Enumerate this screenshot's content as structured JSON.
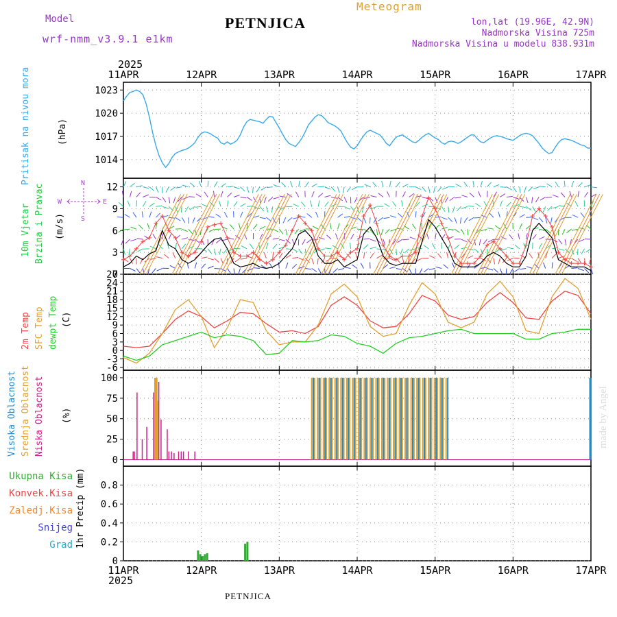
{
  "header": {
    "model_label": "Model",
    "model_value": "wrf-nmm_v3.9.1  e1km",
    "station": "PETNJICA",
    "meteogram": "Meteogram",
    "lonlat": "lon,lat (19.96E, 42.9N)",
    "elevation": "Nadmorska Visina 725m",
    "model_elevation": "Nadmorska Visina u modelu 838.931m"
  },
  "footer": {
    "station": "PETNJICA"
  },
  "watermark": "made by Angel",
  "colors": {
    "pressure": "#38a8e8",
    "wind": "#22cc44",
    "temp2m": "#ee4444",
    "sfc": "#e0a030",
    "dew": "#22cc22",
    "high_cloud": "#2288cc",
    "mid_cloud": "#e0a030",
    "low_cloud": "#cc2288",
    "total_precip": "#33aa33",
    "conv_precip": "#ee4444",
    "frz_precip": "#ee8833",
    "snow": "#4444dd",
    "hail": "#22aacc",
    "compass": "#aa44cc",
    "title_purple": "#9933cc",
    "title_orange": "#e0a030"
  },
  "chart_data": [
    {
      "type": "line",
      "panel": "pressure",
      "ylabel": [
        "Pritisak na nivou mora",
        "(hPa)"
      ],
      "ylim": [
        1011,
        1024
      ],
      "yticks": [
        1014,
        1017,
        1020,
        1023
      ],
      "xlim": [
        0,
        144
      ],
      "xtick_labels": [
        "11APR",
        "12APR",
        "13APR",
        "14APR",
        "15APR",
        "16APR",
        "17APR"
      ],
      "year_label": "2025",
      "series": [
        {
          "color": "pressure",
          "x": [
            0,
            1,
            2,
            3,
            4,
            5,
            6,
            7,
            8,
            9,
            10,
            11,
            12,
            13,
            14,
            15,
            16,
            17,
            18,
            19,
            20,
            21,
            22,
            23,
            24,
            25,
            26,
            27,
            28,
            29,
            30,
            31,
            32,
            33,
            34,
            35,
            36,
            37,
            38,
            39,
            40,
            41,
            42,
            43,
            44,
            45,
            46,
            47,
            48,
            49,
            50,
            51,
            52,
            53,
            54,
            55,
            56,
            57,
            58,
            59,
            60,
            61,
            62,
            63,
            64,
            65,
            66,
            67,
            68,
            69,
            70,
            71,
            72,
            73,
            74,
            75,
            76,
            77,
            78,
            79,
            80,
            81,
            82,
            83,
            84,
            85,
            86,
            87,
            88,
            89,
            90,
            91,
            92,
            93,
            94,
            95,
            96,
            97,
            98,
            99,
            100,
            101,
            102,
            103,
            104,
            105,
            106,
            107,
            108,
            109,
            110,
            111,
            112,
            113,
            114,
            115,
            116,
            117,
            118,
            119,
            120,
            121,
            122,
            123,
            124,
            125,
            126,
            127,
            128,
            129,
            130,
            131,
            132,
            133,
            134,
            135,
            136,
            137,
            138,
            139,
            140,
            141,
            142,
            143,
            144
          ],
          "values": [
            1021.6,
            1022.2,
            1022.7,
            1022.8,
            1023.0,
            1022.8,
            1022.4,
            1021.2,
            1019.5,
            1017.5,
            1015.8,
            1014.5,
            1013.6,
            1013.0,
            1013.5,
            1014.3,
            1014.8,
            1015.0,
            1015.2,
            1015.3,
            1015.5,
            1015.8,
            1016.2,
            1016.9,
            1017.4,
            1017.6,
            1017.5,
            1017.3,
            1017.0,
            1016.8,
            1016.2,
            1016.0,
            1016.3,
            1016.0,
            1016.2,
            1016.5,
            1017.2,
            1018.2,
            1018.9,
            1019.2,
            1019.1,
            1019.0,
            1018.9,
            1018.7,
            1019.2,
            1019.6,
            1019.5,
            1018.8,
            1018.1,
            1017.3,
            1016.6,
            1016.1,
            1015.9,
            1015.7,
            1016.2,
            1016.8,
            1017.6,
            1018.5,
            1019.0,
            1019.5,
            1019.8,
            1019.7,
            1019.3,
            1018.8,
            1018.6,
            1018.4,
            1018.1,
            1017.7,
            1016.9,
            1016.2,
            1015.6,
            1015.4,
            1015.8,
            1016.5,
            1017.1,
            1017.6,
            1017.8,
            1017.6,
            1017.4,
            1017.2,
            1016.7,
            1016.1,
            1015.8,
            1016.4,
            1016.9,
            1017.1,
            1017.2,
            1016.9,
            1016.6,
            1016.3,
            1016.2,
            1016.5,
            1016.9,
            1017.2,
            1017.4,
            1017.1,
            1016.8,
            1016.6,
            1016.2,
            1016.0,
            1016.3,
            1016.4,
            1016.3,
            1016.1,
            1016.3,
            1016.6,
            1016.9,
            1017.2,
            1017.2,
            1016.7,
            1016.3,
            1016.2,
            1016.5,
            1016.8,
            1017.0,
            1017.1,
            1017.0,
            1016.9,
            1016.7,
            1016.6,
            1016.5,
            1016.8,
            1017.1,
            1017.3,
            1017.4,
            1017.3,
            1017.1,
            1016.6,
            1016.1,
            1015.5,
            1015.1,
            1014.8,
            1014.9,
            1015.6,
            1016.2,
            1016.6,
            1016.7,
            1016.6,
            1016.5,
            1016.3,
            1016.1,
            1015.9,
            1015.8,
            1015.5,
            1015.5
          ]
        }
      ]
    },
    {
      "type": "line",
      "panel": "wind",
      "ylabel": [
        "10m Vjetar",
        "Brzina i Pravac",
        "(m/s)"
      ],
      "compass": {
        "n": "N",
        "s": "S",
        "w": "W",
        "e": "E"
      },
      "ylim": [
        0,
        13
      ],
      "yticks": [
        0,
        3,
        6,
        9,
        12
      ],
      "xlim": [
        0,
        144
      ],
      "series": [
        {
          "name": "speed",
          "color": "#000000",
          "x": [
            0,
            2,
            4,
            6,
            8,
            10,
            12,
            14,
            16,
            18,
            20,
            22,
            24,
            26,
            28,
            30,
            32,
            34,
            36,
            38,
            40,
            42,
            44,
            46,
            48,
            50,
            52,
            54,
            56,
            58,
            60,
            62,
            64,
            66,
            68,
            70,
            72,
            74,
            76,
            78,
            80,
            82,
            84,
            86,
            88,
            90,
            92,
            94,
            96,
            98,
            100,
            102,
            104,
            106,
            108,
            110,
            112,
            114,
            116,
            118,
            120,
            122,
            124,
            126,
            128,
            130,
            132,
            134,
            136,
            138,
            140,
            142,
            144
          ],
          "values": [
            1.0,
            1.5,
            2.5,
            2.0,
            2.8,
            3.2,
            6.0,
            4.0,
            3.5,
            2.0,
            1.5,
            2.0,
            3.0,
            4.0,
            4.8,
            5.0,
            3.5,
            1.5,
            1.0,
            1.2,
            1.5,
            1.0,
            0.8,
            1.0,
            1.5,
            2.5,
            3.5,
            5.5,
            6.0,
            5.0,
            2.5,
            1.5,
            1.5,
            2.0,
            1.0,
            1.5,
            2.0,
            5.5,
            6.5,
            5.0,
            2.5,
            1.5,
            1.2,
            1.5,
            1.5,
            1.5,
            4.5,
            7.5,
            6.5,
            5.0,
            3.5,
            1.5,
            1.0,
            1.0,
            1.0,
            1.5,
            2.5,
            3.0,
            2.5,
            1.5,
            1.0,
            1.0,
            2.5,
            6.0,
            7.0,
            6.0,
            5.0,
            2.0,
            1.5,
            1.0,
            1.0,
            1.0,
            0.5
          ]
        },
        {
          "name": "gust",
          "color": "temp2m",
          "x": [
            0,
            2,
            4,
            6,
            8,
            10,
            12,
            14,
            16,
            18,
            20,
            22,
            24,
            26,
            28,
            30,
            32,
            34,
            36,
            38,
            40,
            42,
            44,
            46,
            48,
            50,
            52,
            54,
            56,
            58,
            60,
            62,
            64,
            66,
            68,
            70,
            72,
            74,
            76,
            78,
            80,
            82,
            84,
            86,
            88,
            90,
            92,
            94,
            96,
            98,
            100,
            102,
            104,
            106,
            108,
            110,
            112,
            114,
            116,
            118,
            120,
            122,
            124,
            126,
            128,
            130,
            132,
            134,
            136,
            138,
            140,
            142,
            144
          ],
          "values": [
            2.0,
            2.5,
            3.5,
            4.5,
            5.0,
            7.0,
            8.0,
            6.0,
            5.0,
            3.0,
            2.5,
            3.0,
            4.5,
            6.5,
            6.8,
            7.0,
            5.0,
            3.0,
            2.5,
            2.5,
            3.0,
            2.0,
            1.5,
            2.0,
            3.0,
            4.0,
            6.0,
            8.0,
            7.0,
            6.0,
            3.5,
            2.5,
            2.5,
            3.0,
            2.0,
            3.0,
            3.5,
            8.0,
            9.5,
            7.0,
            4.0,
            2.5,
            2.0,
            2.5,
            2.5,
            3.0,
            8.0,
            10.5,
            9.0,
            7.0,
            5.0,
            2.5,
            1.5,
            1.5,
            1.5,
            2.5,
            4.0,
            4.5,
            3.5,
            2.5,
            1.5,
            1.5,
            4.0,
            8.0,
            9.0,
            8.0,
            6.5,
            3.0,
            2.0,
            1.5,
            1.5,
            1.5,
            1.0
          ]
        }
      ]
    },
    {
      "type": "line",
      "panel": "temperature",
      "ylabel": [
        "2m Temp",
        "SFC Temp",
        "dewpt Temp",
        "(C)"
      ],
      "ylim": [
        -7,
        27
      ],
      "yticks": [
        -6,
        -3,
        0,
        3,
        6,
        9,
        12,
        15,
        18,
        21,
        24,
        27
      ],
      "xlim": [
        0,
        144
      ],
      "series": [
        {
          "name": "2m Temp",
          "color": "temp2m",
          "x": [
            0,
            4,
            8,
            12,
            16,
            20,
            24,
            28,
            32,
            36,
            40,
            44,
            48,
            52,
            56,
            60,
            64,
            68,
            72,
            76,
            80,
            84,
            88,
            92,
            96,
            100,
            104,
            108,
            112,
            116,
            120,
            124,
            128,
            132,
            136,
            140,
            144
          ],
          "values": [
            1.5,
            1.0,
            1.5,
            6.0,
            11.0,
            14.0,
            12.0,
            8.0,
            10.5,
            13.5,
            13.0,
            9.5,
            6.5,
            7.0,
            6.0,
            8.5,
            16.0,
            19.0,
            16.0,
            10.5,
            8.0,
            8.5,
            13.0,
            19.5,
            17.5,
            12.5,
            11.0,
            12.0,
            17.0,
            20.5,
            17.0,
            11.5,
            11.0,
            17.5,
            21.0,
            19.5,
            13.0
          ]
        },
        {
          "name": "SFC Temp",
          "color": "sfc",
          "x": [
            0,
            4,
            8,
            12,
            16,
            20,
            24,
            28,
            32,
            36,
            40,
            44,
            48,
            52,
            56,
            60,
            64,
            68,
            72,
            76,
            80,
            84,
            88,
            92,
            96,
            100,
            104,
            108,
            112,
            116,
            120,
            124,
            128,
            132,
            136,
            140,
            144
          ],
          "values": [
            -2.5,
            -4.5,
            -1.0,
            6.0,
            14.5,
            18.0,
            12.0,
            1.0,
            8.0,
            18.0,
            17.0,
            7.0,
            2.0,
            3.0,
            3.0,
            9.0,
            20.0,
            23.5,
            19.0,
            8.5,
            5.0,
            6.0,
            16.0,
            24.0,
            20.0,
            10.0,
            8.0,
            10.0,
            20.0,
            24.5,
            19.0,
            7.0,
            6.0,
            19.0,
            25.5,
            22.0,
            11.0
          ]
        },
        {
          "name": "dewpt Temp",
          "color": "dew",
          "x": [
            0,
            4,
            8,
            12,
            16,
            20,
            24,
            28,
            32,
            36,
            40,
            44,
            48,
            52,
            56,
            60,
            64,
            68,
            72,
            76,
            80,
            84,
            88,
            92,
            96,
            100,
            104,
            108,
            112,
            116,
            120,
            124,
            128,
            132,
            136,
            140,
            144
          ],
          "values": [
            -2.0,
            -3.5,
            -2.0,
            2.0,
            3.5,
            5.0,
            6.5,
            4.5,
            5.5,
            5.0,
            3.5,
            -1.5,
            -1.0,
            3.5,
            3.0,
            3.5,
            5.5,
            5.0,
            2.5,
            1.5,
            -1.0,
            2.5,
            4.5,
            5.0,
            6.0,
            7.0,
            7.5,
            6.0,
            6.0,
            6.0,
            6.0,
            4.0,
            4.0,
            6.0,
            6.5,
            7.5,
            7.5
          ]
        }
      ]
    },
    {
      "type": "bar",
      "panel": "cloud",
      "ylabel": [
        "Visoka Oblacnost",
        "Srednja Oblacnost",
        "Niska Oblacnost",
        "(%)"
      ],
      "ylim": [
        0,
        100
      ],
      "yticks": [
        0,
        25,
        50,
        75,
        100
      ],
      "xlim": [
        0,
        144
      ],
      "low": {
        "x": [
          3.0,
          3.4,
          4.2,
          5.8,
          7.2,
          9.3,
          10.2,
          10.9,
          11.6,
          13.5,
          14.0,
          14.8,
          15.6,
          17.0,
          17.8,
          18.5,
          20.0,
          22.0
        ],
        "values": [
          10,
          10,
          82,
          25,
          40,
          82,
          97,
          95,
          49,
          37,
          10,
          10,
          8,
          10,
          10,
          10,
          10,
          10
        ]
      },
      "mid": {
        "x": [
          9.7,
          10.0,
          10.3,
          10.5,
          12.0,
          13.0
        ],
        "values": [
          100,
          100,
          100,
          72,
          0,
          0
        ]
      },
      "mid_band": {
        "x0": 58.0,
        "x1": 100.0,
        "step": 0.9,
        "value": 100
      },
      "high_band": {
        "x0": 58.5,
        "x1": 100.0,
        "step": 1.8,
        "value": 100
      },
      "high_end": {
        "x": 143.8,
        "value": 100
      },
      "low_band": {
        "x0": 58.0,
        "x1": 100.0,
        "value": 100
      }
    },
    {
      "type": "bar",
      "panel": "precip",
      "ylabel": [
        "1hr Precip (mm)"
      ],
      "legend": [
        "Ukupna Kisa",
        "Konvek.Kisa",
        "Zaledj.Kisa",
        "Snijeg",
        "Grad"
      ],
      "ylim": [
        0,
        1.0
      ],
      "yticks": [
        0,
        0.2,
        0.4,
        0.6,
        0.8
      ],
      "xlim": [
        0,
        144
      ],
      "series": [
        {
          "name": "Ukupna Kisa",
          "color": "total_precip",
          "x": [
            23,
            23.7,
            24.4,
            25.1,
            25.8,
            37.5,
            38.2
          ],
          "values": [
            0.11,
            0.07,
            0.05,
            0.07,
            0.08,
            0.18,
            0.2
          ]
        }
      ]
    }
  ]
}
